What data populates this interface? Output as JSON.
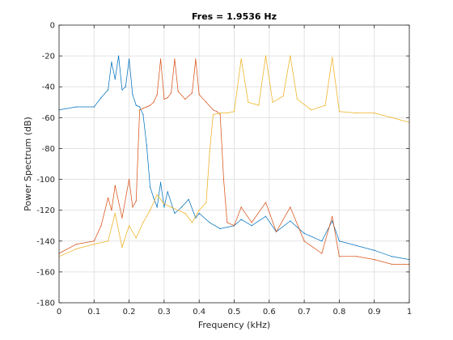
{
  "chart_data": {
    "type": "line",
    "title": "Fres = 1.9536 Hz",
    "xlabel": "Frequency (kHz)",
    "ylabel": "Power Spectrum (dB)",
    "xlim": [
      0,
      1
    ],
    "ylim": [
      -180,
      0
    ],
    "xticks": [
      0,
      0.1,
      0.2,
      0.3,
      0.4,
      0.5,
      0.6,
      0.7,
      0.8,
      0.9,
      1
    ],
    "xtick_labels": [
      "0",
      "0.1",
      "0.2",
      "0.3",
      "0.4",
      "0.5",
      "0.6",
      "0.7",
      "0.8",
      "0.9",
      "1"
    ],
    "yticks": [
      0,
      -20,
      -40,
      -60,
      -80,
      -100,
      -120,
      -140,
      -160,
      -180
    ],
    "ytick_labels": [
      "0",
      "-20",
      "-40",
      "-60",
      "-80",
      "-100",
      "-120",
      "-140",
      "-160",
      "-180"
    ],
    "grid": true,
    "legend": "none",
    "series": [
      {
        "color": "#0072BD",
        "x": [
          0,
          0.05,
          0.1,
          0.12,
          0.14,
          0.15,
          0.16,
          0.17,
          0.18,
          0.19,
          0.2,
          0.21,
          0.22,
          0.23,
          0.24,
          0.25,
          0.26,
          0.27,
          0.28,
          0.29,
          0.3,
          0.31,
          0.33,
          0.35,
          0.37,
          0.39,
          0.4,
          0.43,
          0.46,
          0.5,
          0.52,
          0.55,
          0.59,
          0.62,
          0.66,
          0.7,
          0.75,
          0.78,
          0.8,
          0.85,
          0.9,
          0.95,
          1
        ],
        "y": [
          -55,
          -53,
          -53,
          -47,
          -42,
          -24,
          -35,
          -20,
          -42,
          -40,
          -22,
          -45,
          -52,
          -53,
          -58,
          -78,
          -105,
          -112,
          -118,
          -102,
          -118,
          -108,
          -122,
          -118,
          -113,
          -125,
          -122,
          -128,
          -132,
          -130,
          -126,
          -130,
          -124,
          -134,
          -127,
          -135,
          -140,
          -127,
          -140,
          -143,
          -146,
          -150,
          -152
        ]
      },
      {
        "color": "#D95319",
        "x": [
          0,
          0.05,
          0.1,
          0.12,
          0.14,
          0.15,
          0.16,
          0.18,
          0.2,
          0.21,
          0.22,
          0.23,
          0.24,
          0.25,
          0.26,
          0.27,
          0.28,
          0.29,
          0.3,
          0.31,
          0.32,
          0.33,
          0.34,
          0.36,
          0.38,
          0.39,
          0.4,
          0.42,
          0.44,
          0.45,
          0.46,
          0.47,
          0.48,
          0.5,
          0.52,
          0.55,
          0.59,
          0.62,
          0.66,
          0.7,
          0.75,
          0.78,
          0.8,
          0.85,
          0.9,
          0.95,
          1
        ],
        "y": [
          -148,
          -142,
          -140,
          -130,
          -112,
          -120,
          -104,
          -125,
          -100,
          -118,
          -114,
          -55,
          -54,
          -53,
          -52,
          -50,
          -45,
          -22,
          -48,
          -47,
          -44,
          -22,
          -43,
          -48,
          -44,
          -22,
          -45,
          -50,
          -55,
          -56,
          -58,
          -100,
          -128,
          -130,
          -118,
          -128,
          -115,
          -134,
          -118,
          -140,
          -148,
          -124,
          -150,
          -150,
          -152,
          -155,
          -155
        ]
      },
      {
        "color": "#EDB120",
        "x": [
          0,
          0.05,
          0.1,
          0.14,
          0.16,
          0.18,
          0.2,
          0.22,
          0.24,
          0.26,
          0.28,
          0.3,
          0.32,
          0.34,
          0.36,
          0.38,
          0.4,
          0.42,
          0.43,
          0.44,
          0.46,
          0.48,
          0.5,
          0.52,
          0.54,
          0.57,
          0.59,
          0.61,
          0.64,
          0.66,
          0.68,
          0.72,
          0.76,
          0.78,
          0.8,
          0.85,
          0.9,
          0.95,
          1
        ],
        "y": [
          -150,
          -145,
          -142,
          -140,
          -122,
          -144,
          -130,
          -138,
          -128,
          -120,
          -110,
          -116,
          -118,
          -120,
          -122,
          -128,
          -120,
          -115,
          -82,
          -58,
          -57,
          -57,
          -56,
          -22,
          -50,
          -52,
          -20,
          -50,
          -46,
          -20,
          -48,
          -55,
          -52,
          -21,
          -56,
          -57,
          -57,
          -60,
          -63
        ]
      }
    ]
  }
}
